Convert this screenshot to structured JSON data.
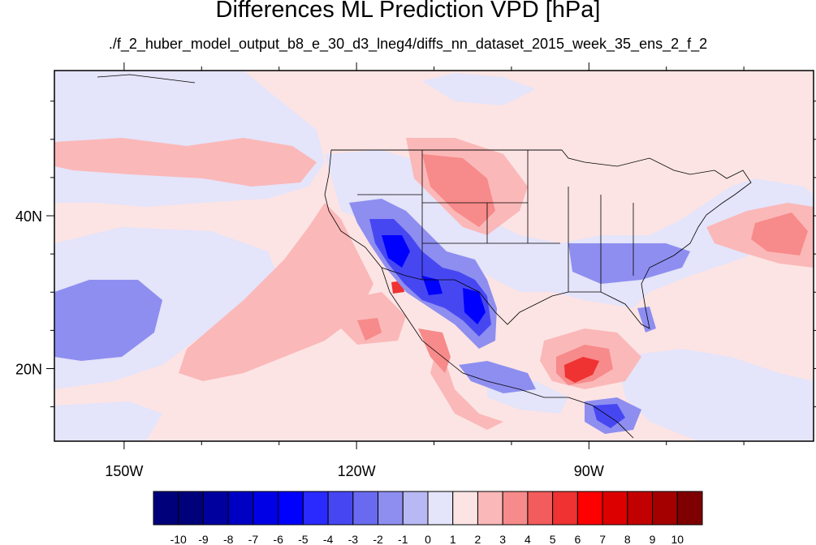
{
  "title": "Differences ML Prediction VPD [hPa]",
  "subtitle": "./f_2_huber_model_output_b8_e_30_d3_lneg4/diffs_nn_dataset_2015_week_35_ens_2_f_2",
  "axes": {
    "lon_ticks": [
      {
        "lon": -150,
        "label": "150W"
      },
      {
        "lon": -120,
        "label": "120W"
      },
      {
        "lon": -90,
        "label": "90W"
      }
    ],
    "lat_ticks": [
      {
        "lat": 40,
        "label": "40N"
      },
      {
        "lat": 20,
        "label": "20N"
      }
    ],
    "lon_range": [
      -159,
      -61
    ],
    "lat_range": [
      10.5,
      59
    ]
  },
  "colorbar": {
    "labels": [
      "-10",
      "-9",
      "-8",
      "-7",
      "-6",
      "-5",
      "-4",
      "-3",
      "-2",
      "-1",
      "0",
      "1",
      "2",
      "3",
      "4",
      "5",
      "6",
      "7",
      "8",
      "9",
      "10"
    ],
    "colors": [
      "#00007a",
      "#00009e",
      "#0000c4",
      "#0000e6",
      "#0000ff",
      "#2a2aff",
      "#4747f2",
      "#6a6af0",
      "#8e8ef0",
      "#b8b8f4",
      "#e4e4fa",
      "#fce4e4",
      "#fbb8b8",
      "#f78a8a",
      "#f25c5c",
      "#ef3232",
      "#ff0000",
      "#dc0000",
      "#c20000",
      "#a40000",
      "#7e0000"
    ]
  }
}
